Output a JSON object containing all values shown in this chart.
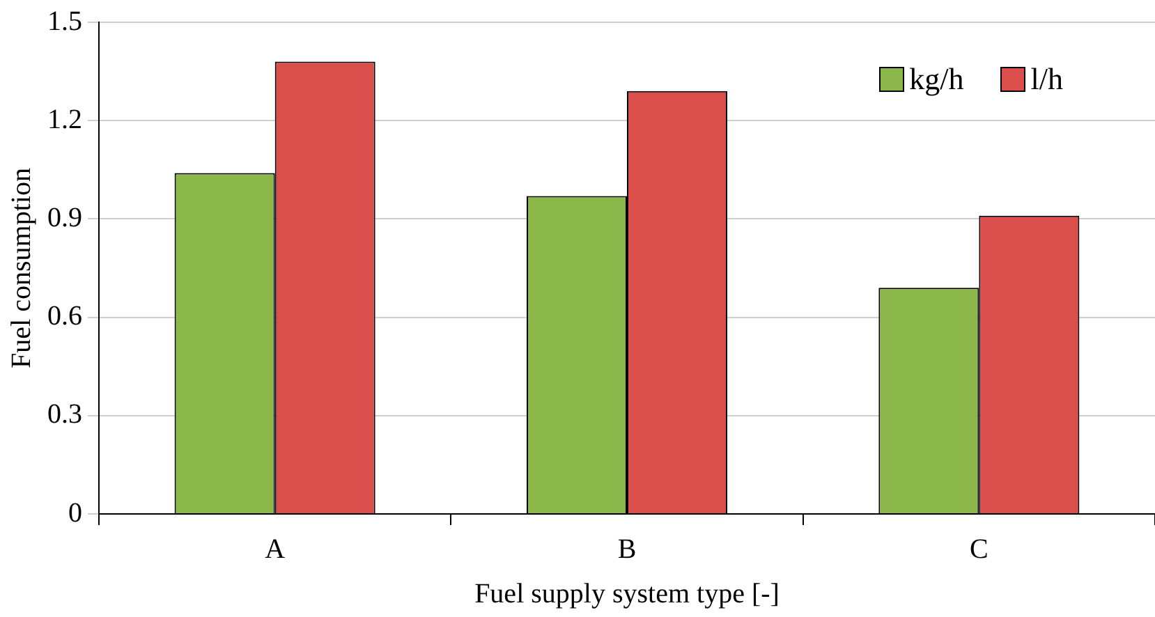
{
  "chart_data": {
    "type": "bar",
    "xlabel": "Fuel supply system type [-]",
    "ylabel": "Fuel consumption",
    "categories": [
      "A",
      "B",
      "C"
    ],
    "series": [
      {
        "name": "kg/h",
        "color": "#8cb84b",
        "values": [
          1.04,
          0.97,
          0.69
        ]
      },
      {
        "name": "l/h",
        "color": "#da4f4b",
        "values": [
          1.38,
          1.29,
          0.91
        ]
      }
    ],
    "ylim": [
      0,
      1.5
    ],
    "yticks": [
      0,
      0.3,
      0.6,
      0.9,
      1.2,
      1.5
    ],
    "grid": "y",
    "legend": "top right"
  }
}
